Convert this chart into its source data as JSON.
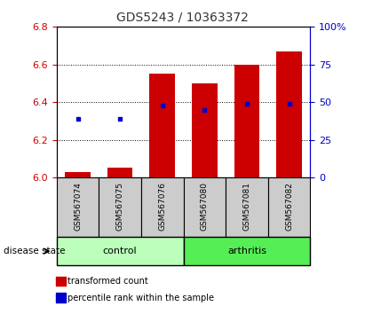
{
  "title": "GDS5243 / 10363372",
  "samples": [
    "GSM567074",
    "GSM567075",
    "GSM567076",
    "GSM567080",
    "GSM567081",
    "GSM567082"
  ],
  "bar_base": 6.0,
  "bar_tops": [
    6.03,
    6.05,
    6.55,
    6.5,
    6.6,
    6.67
  ],
  "percentile_values": [
    6.31,
    6.31,
    6.38,
    6.36,
    6.39,
    6.39
  ],
  "ylim_left": [
    6.0,
    6.8
  ],
  "ylim_right": [
    0,
    100
  ],
  "yticks_left": [
    6.0,
    6.2,
    6.4,
    6.6,
    6.8
  ],
  "yticks_right": [
    0,
    25,
    50,
    75,
    100
  ],
  "ytick_right_labels": [
    "0",
    "25",
    "50",
    "75",
    "100%"
  ],
  "bar_color": "#cc0000",
  "dot_color": "#0000cc",
  "bar_width": 0.6,
  "control_color": "#bbffbb",
  "arthritis_color": "#55ee55",
  "sample_bg_color": "#cccccc",
  "legend_items": [
    {
      "label": "transformed count",
      "color": "#cc0000"
    },
    {
      "label": "percentile rank within the sample",
      "color": "#0000cc"
    }
  ],
  "disease_state_label": "disease state",
  "control_label": "control",
  "arthritis_label": "arthritis",
  "tick_color_left": "#cc0000",
  "tick_color_right": "#0000cc",
  "title_color": "#333333",
  "tick_fontsize": 8,
  "label_fontsize": 7.5,
  "sample_fontsize": 6.5,
  "group_fontsize": 8
}
